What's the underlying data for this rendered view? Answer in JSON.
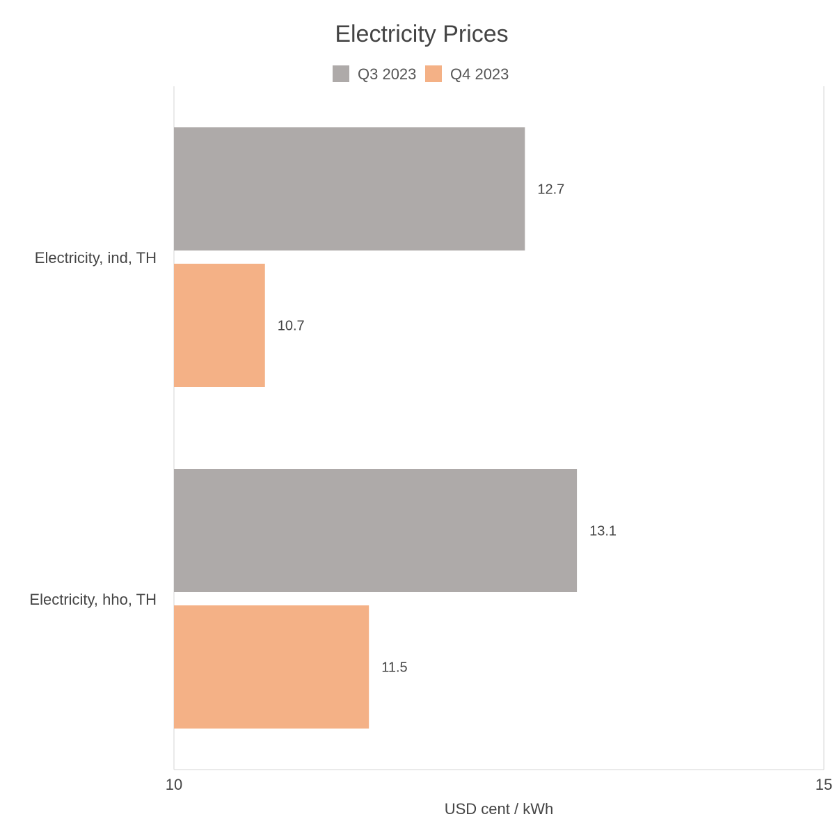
{
  "chart_data": {
    "type": "bar",
    "orientation": "horizontal",
    "title": "Electricity Prices",
    "xlabel": "USD cent / kWh",
    "ylabel": "",
    "xlim": [
      10,
      15
    ],
    "x_ticks": [
      "10",
      "15"
    ],
    "categories": [
      "Electricity, ind, TH",
      "Electricity, hho, TH"
    ],
    "series": [
      {
        "name": "Q3 2023",
        "color": "#aeaaa9",
        "values": [
          12.7,
          13.1
        ]
      },
      {
        "name": "Q4 2023",
        "color": "#f4b186",
        "values": [
          10.7,
          11.5
        ]
      }
    ],
    "legend": "top-center",
    "grid": false,
    "data_labels": true
  }
}
